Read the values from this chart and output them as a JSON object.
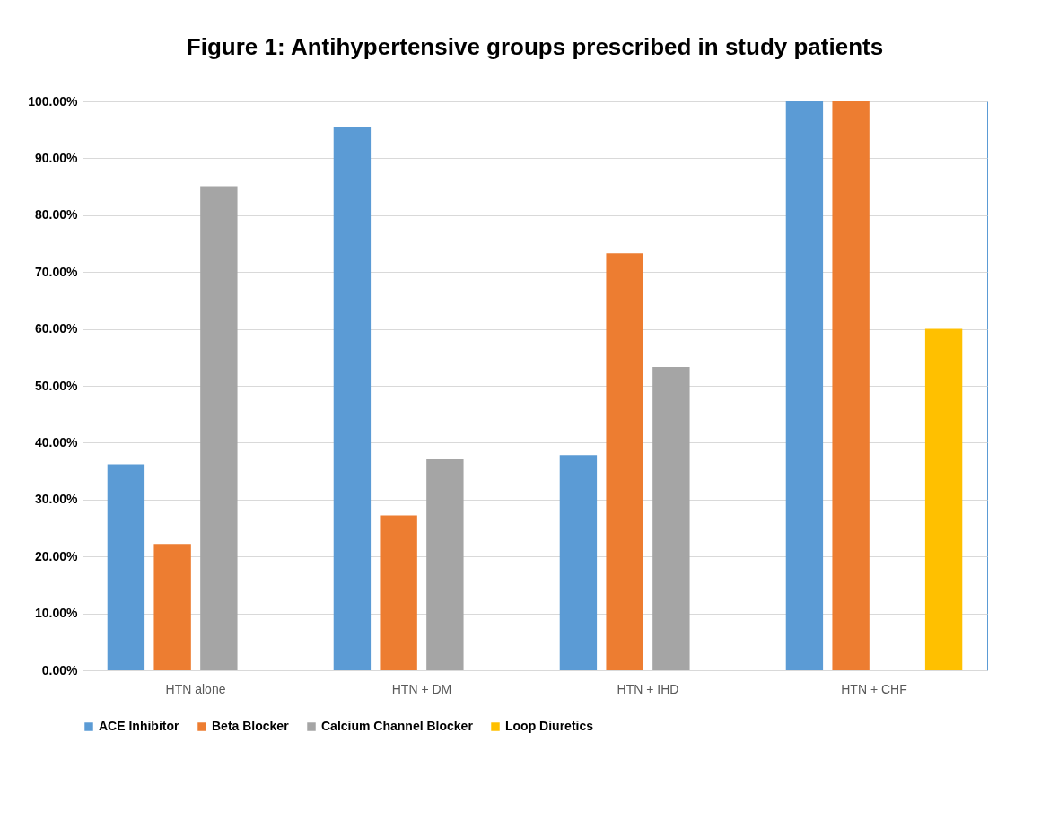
{
  "chart_data": {
    "type": "bar",
    "title": "Figure 1: Antihypertensive groups prescribed in study patients",
    "categories": [
      "HTN alone",
      "HTN + DM",
      "HTN + IHD",
      "HTN + CHF"
    ],
    "series": [
      {
        "name": "ACE Inhibitor",
        "color": "#5b9bd5",
        "values": [
          36.2,
          95.5,
          37.8,
          100
        ]
      },
      {
        "name": "Beta Blocker",
        "color": "#ed7d31",
        "values": [
          22.2,
          27.2,
          73.3,
          100
        ]
      },
      {
        "name": "Calcium Channel Blocker",
        "color": "#a5a5a5",
        "values": [
          85.1,
          37.1,
          53.3,
          0
        ]
      },
      {
        "name": "Loop Diuretics",
        "color": "#ffc000",
        "values": [
          0,
          0,
          0,
          60
        ]
      }
    ],
    "ylim": [
      0,
      100
    ],
    "yticks": [
      {
        "value": 0,
        "label": "0.00%"
      },
      {
        "value": 10,
        "label": "10.00%"
      },
      {
        "value": 20,
        "label": "20.00%"
      },
      {
        "value": 30,
        "label": "30.00%"
      },
      {
        "value": 40,
        "label": "40.00%"
      },
      {
        "value": 50,
        "label": "50.00%"
      },
      {
        "value": 60,
        "label": "60.00%"
      },
      {
        "value": 70,
        "label": "70.00%"
      },
      {
        "value": 80,
        "label": "80.00%"
      },
      {
        "value": 90,
        "label": "90.00%"
      },
      {
        "value": 100,
        "label": "100.00%"
      }
    ],
    "grid": "y",
    "legend": "bottom"
  }
}
